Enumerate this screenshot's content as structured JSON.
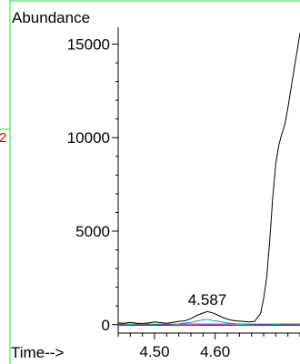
{
  "chart_data": {
    "type": "line",
    "ylabel": "Abundance",
    "xlabel": "Time-->",
    "xlim": [
      4.44,
      4.74
    ],
    "ylim": [
      -450,
      15900
    ],
    "x_ticks": [
      {
        "value": 4.5,
        "label": "4.50"
      },
      {
        "value": 4.6,
        "label": "4.60"
      }
    ],
    "y_ticks": [
      {
        "value": 0,
        "label": "0"
      },
      {
        "value": 5000,
        "label": "5000"
      },
      {
        "value": 10000,
        "label": "10000"
      },
      {
        "value": 15000,
        "label": "15000"
      }
    ],
    "annotations": [
      {
        "text": "4.587",
        "x": 4.587,
        "y": 680
      }
    ],
    "side_marker": {
      "text": "2",
      "color": "#dd0000"
    },
    "series": [
      {
        "color": "#000000",
        "x": [
          4.44,
          4.45,
          4.46,
          4.47,
          4.48,
          4.49,
          4.5,
          4.51,
          4.52,
          4.53,
          4.54,
          4.55,
          4.56,
          4.57,
          4.58,
          4.587,
          4.595,
          4.605,
          4.615,
          4.625,
          4.635,
          4.645,
          4.655,
          4.665,
          4.675,
          4.68,
          4.685,
          4.69,
          4.695,
          4.7,
          4.705,
          4.71,
          4.715,
          4.72,
          4.725,
          4.73,
          4.735,
          4.74
        ],
        "y": [
          90,
          70,
          120,
          80,
          60,
          90,
          150,
          110,
          70,
          120,
          180,
          200,
          320,
          500,
          620,
          700,
          640,
          500,
          350,
          250,
          200,
          180,
          150,
          170,
          600,
          1400,
          2500,
          4500,
          6800,
          8600,
          9600,
          10200,
          10700,
          11600,
          12600,
          13600,
          14600,
          15600
        ]
      },
      {
        "color": "#8800aa",
        "x": [
          4.44,
          4.48,
          4.52,
          4.56,
          4.6,
          4.64,
          4.68,
          4.72,
          4.74
        ],
        "y": [
          25,
          30,
          20,
          30,
          25,
          30,
          25,
          30,
          30
        ]
      },
      {
        "color": "#00aaaa",
        "x": [
          4.44,
          4.46,
          4.48,
          4.5,
          4.52,
          4.54,
          4.56,
          4.575,
          4.587,
          4.6,
          4.62,
          4.64,
          4.66,
          4.68,
          4.7,
          4.72,
          4.74
        ],
        "y": [
          -20,
          20,
          -30,
          10,
          -20,
          40,
          120,
          230,
          280,
          200,
          90,
          30,
          0,
          -10,
          10,
          -20,
          0
        ]
      },
      {
        "color": "#dd0000",
        "x": [
          4.44,
          4.5,
          4.55,
          4.6,
          4.65,
          4.7,
          4.74
        ],
        "y": [
          -40,
          -35,
          -40,
          -38,
          -40,
          -36,
          -40
        ]
      }
    ]
  }
}
